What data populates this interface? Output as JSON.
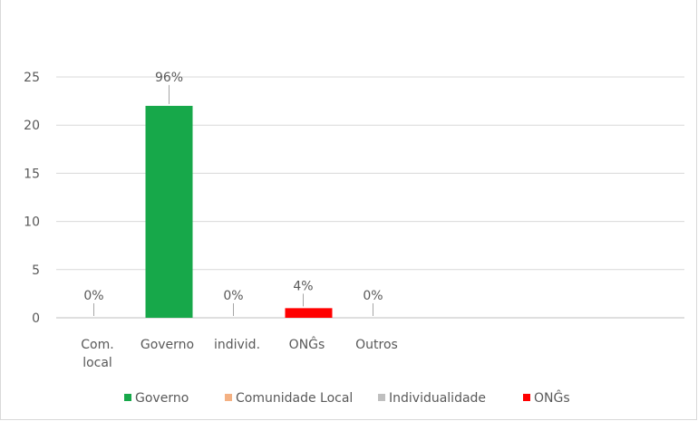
{
  "chart_data": {
    "type": "bar",
    "title": "",
    "xlabel": "",
    "ylabel": "",
    "categories": [
      [
        "Com.",
        "local"
      ],
      [
        "Governo"
      ],
      [
        "individ."
      ],
      [
        "ONĜs"
      ],
      [
        "Outros"
      ]
    ],
    "values": [
      0,
      22,
      0,
      1,
      0
    ],
    "data_labels": [
      "0%",
      "96%",
      "0%",
      "4%",
      "0%"
    ],
    "bar_colors": [
      "#ed9b57",
      "#17a84a",
      "#a6a6a6",
      "#ff0000",
      "#4472c4"
    ],
    "ylim": [
      0,
      25
    ],
    "yticks": [
      0,
      5,
      10,
      15,
      20,
      25
    ],
    "grid": true,
    "legend_position": "bottom",
    "legend": [
      {
        "name": "Governo",
        "color": "#17a84a"
      },
      {
        "name": "Comunidade Local",
        "color": "#f4b183"
      },
      {
        "name": "Individualidade",
        "color": "#bfbfbf"
      },
      {
        "name": "ONĜs",
        "color": "#ff0000"
      }
    ]
  }
}
